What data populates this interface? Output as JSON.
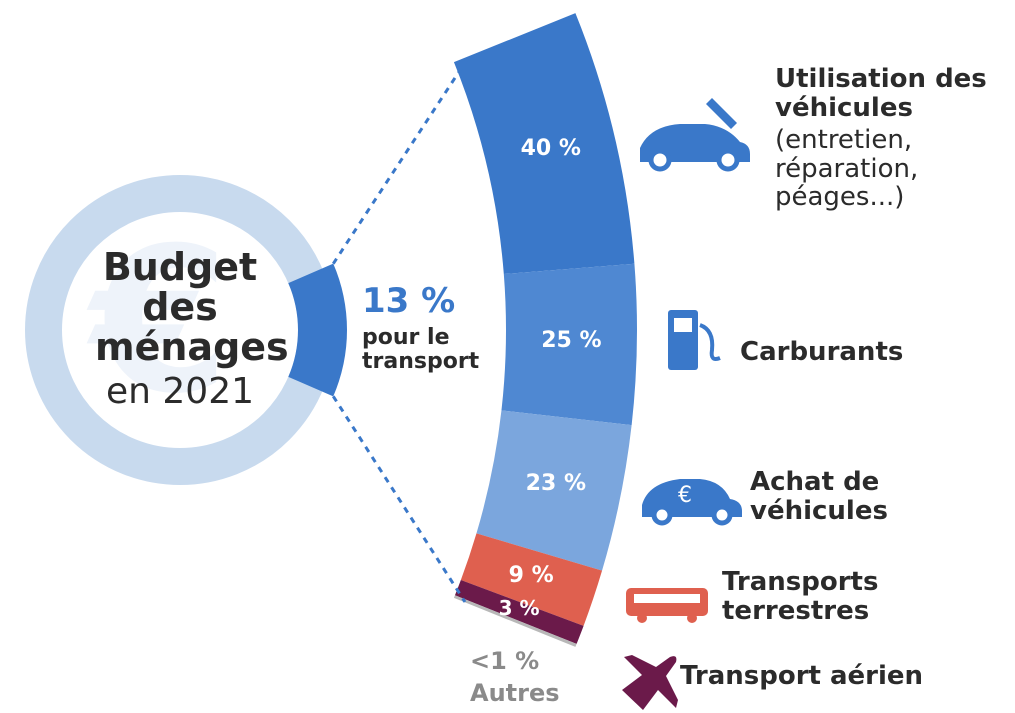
{
  "chart_data": [
    {
      "type": "donut",
      "title": "Budget des ménages",
      "subtitle": "en 2021",
      "values": [
        13
      ],
      "value_labels": [
        "13 %"
      ],
      "categories": [
        "pour le transport"
      ],
      "color": "#3a78c9",
      "ring_color": "#c8daee"
    },
    {
      "type": "arc",
      "categories": [
        "Utilisation des véhicules",
        "Carburants",
        "Achat de véhicules",
        "Transports terrestres",
        "Transport aérien",
        "Autres"
      ],
      "annotations": [
        "(entretien, réparation, péages...)"
      ],
      "values": [
        40,
        25,
        23,
        9,
        3,
        0.5
      ],
      "value_labels": [
        "40 %",
        "25 %",
        "23 %",
        "9 %",
        "3 %",
        "<1 %"
      ],
      "colors": [
        "#3a78c9",
        "#4f88d2",
        "#7ba6dd",
        "#df604f",
        "#6b1a4a",
        "#b8b8b8"
      ]
    }
  ]
}
